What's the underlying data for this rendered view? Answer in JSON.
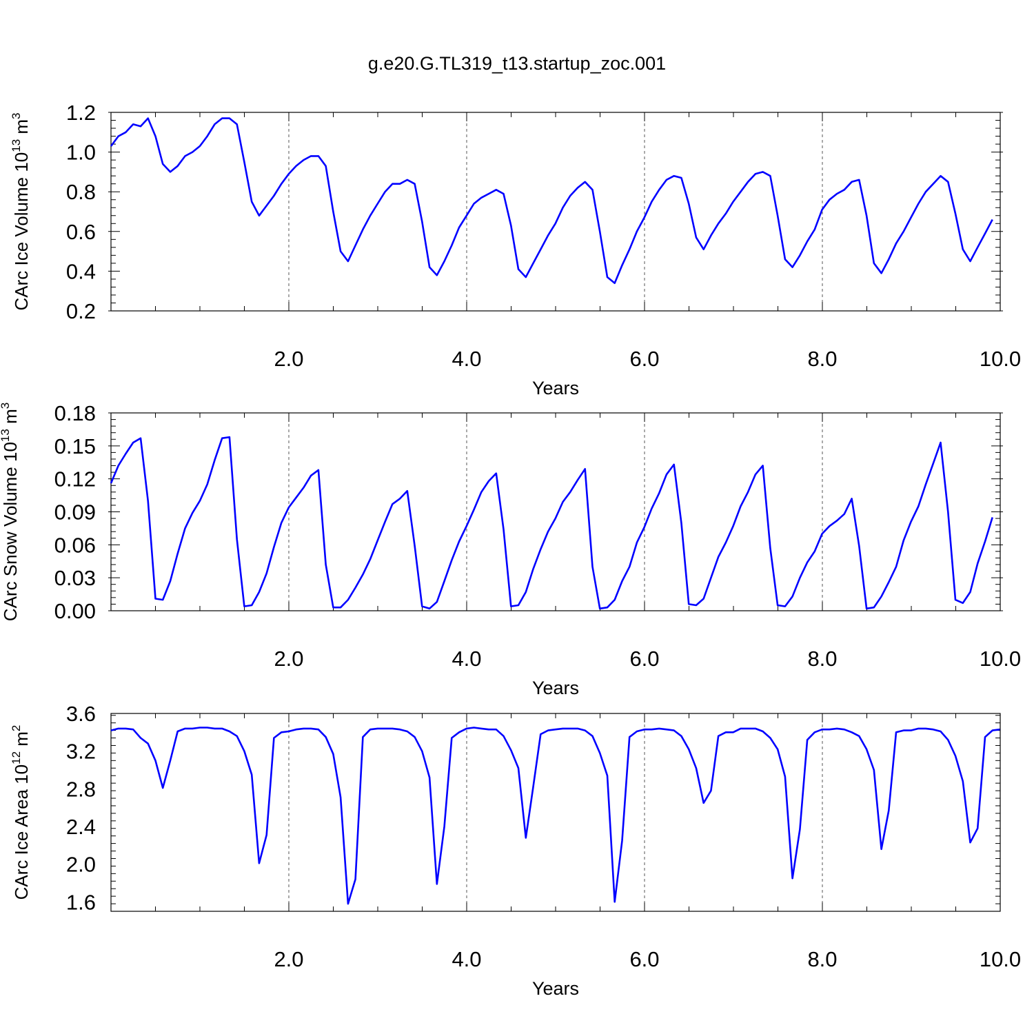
{
  "title": "g.e20.G.TL319_t13.startup_zoc.001",
  "colors": {
    "series": "#0000ff",
    "axis": "#000000",
    "grid": "#555555"
  },
  "chart_data": [
    {
      "type": "line",
      "ylabel": "CArc Ice Volume 10",
      "ylabel_exp": "13",
      "ylabel_unit": "m",
      "ylabel_unit_exp": "3",
      "xlabel": "Years",
      "xlim": [
        0.0,
        10.0
      ],
      "ylim": [
        0.2,
        1.2
      ],
      "xticks": [
        2.0,
        4.0,
        6.0,
        8.0,
        10.0
      ],
      "xtick_labels": [
        "2.0",
        "4.0",
        "6.0",
        "8.0",
        "10.0"
      ],
      "yticks": [
        0.2,
        0.4,
        0.6,
        0.8,
        1.0,
        1.2
      ],
      "ytick_labels": [
        "0.2",
        "0.4",
        "0.6",
        "0.8",
        "1.0",
        "1.2"
      ],
      "grid": "vertical-dashed",
      "x_step": 0.0833,
      "values": [
        1.03,
        1.08,
        1.1,
        1.14,
        1.13,
        1.17,
        1.08,
        0.94,
        0.9,
        0.93,
        0.98,
        1.0,
        1.03,
        1.08,
        1.14,
        1.17,
        1.17,
        1.14,
        0.95,
        0.75,
        0.68,
        0.73,
        0.78,
        0.84,
        0.89,
        0.93,
        0.96,
        0.98,
        0.98,
        0.93,
        0.7,
        0.5,
        0.45,
        0.53,
        0.61,
        0.68,
        0.74,
        0.8,
        0.84,
        0.84,
        0.86,
        0.84,
        0.65,
        0.42,
        0.38,
        0.45,
        0.53,
        0.62,
        0.68,
        0.74,
        0.77,
        0.79,
        0.81,
        0.79,
        0.63,
        0.41,
        0.37,
        0.44,
        0.51,
        0.58,
        0.64,
        0.72,
        0.78,
        0.82,
        0.85,
        0.81,
        0.6,
        0.37,
        0.34,
        0.43,
        0.51,
        0.6,
        0.67,
        0.75,
        0.81,
        0.86,
        0.88,
        0.87,
        0.74,
        0.57,
        0.51,
        0.58,
        0.64,
        0.69,
        0.75,
        0.8,
        0.85,
        0.89,
        0.9,
        0.88,
        0.68,
        0.46,
        0.42,
        0.48,
        0.55,
        0.61,
        0.71,
        0.76,
        0.79,
        0.81,
        0.85,
        0.86,
        0.68,
        0.44,
        0.39,
        0.46,
        0.54,
        0.6,
        0.67,
        0.74,
        0.8,
        0.84,
        0.88,
        0.85,
        0.69,
        0.51,
        0.45,
        0.52,
        0.59,
        0.66
      ]
    },
    {
      "type": "line",
      "ylabel": "CArc Snow Volume 10",
      "ylabel_exp": "13",
      "ylabel_unit": "m",
      "ylabel_unit_exp": "3",
      "xlabel": "Years",
      "xlim": [
        0.0,
        10.0
      ],
      "ylim": [
        0.0,
        0.18
      ],
      "xticks": [
        2.0,
        4.0,
        6.0,
        8.0,
        10.0
      ],
      "xtick_labels": [
        "2.0",
        "4.0",
        "6.0",
        "8.0",
        "10.0"
      ],
      "yticks": [
        0.0,
        0.03,
        0.06,
        0.09,
        0.12,
        0.15,
        0.18
      ],
      "ytick_labels": [
        "0.00",
        "0.03",
        "0.06",
        "0.09",
        "0.12",
        "0.15",
        "0.18"
      ],
      "grid": "vertical-dashed",
      "x_step": 0.0833,
      "values": [
        0.116,
        0.132,
        0.143,
        0.153,
        0.157,
        0.1,
        0.011,
        0.01,
        0.027,
        0.052,
        0.075,
        0.089,
        0.1,
        0.115,
        0.137,
        0.157,
        0.158,
        0.065,
        0.004,
        0.005,
        0.017,
        0.034,
        0.058,
        0.08,
        0.094,
        0.103,
        0.112,
        0.123,
        0.128,
        0.042,
        0.003,
        0.003,
        0.01,
        0.021,
        0.033,
        0.047,
        0.064,
        0.081,
        0.097,
        0.102,
        0.109,
        0.059,
        0.004,
        0.002,
        0.008,
        0.027,
        0.046,
        0.063,
        0.077,
        0.092,
        0.108,
        0.118,
        0.125,
        0.074,
        0.004,
        0.005,
        0.017,
        0.038,
        0.056,
        0.072,
        0.084,
        0.099,
        0.108,
        0.119,
        0.129,
        0.04,
        0.002,
        0.003,
        0.01,
        0.027,
        0.04,
        0.062,
        0.076,
        0.093,
        0.107,
        0.124,
        0.133,
        0.08,
        0.006,
        0.005,
        0.011,
        0.03,
        0.049,
        0.062,
        0.077,
        0.095,
        0.108,
        0.124,
        0.132,
        0.057,
        0.005,
        0.004,
        0.013,
        0.03,
        0.044,
        0.054,
        0.07,
        0.077,
        0.082,
        0.088,
        0.102,
        0.059,
        0.002,
        0.003,
        0.013,
        0.026,
        0.04,
        0.064,
        0.081,
        0.095,
        0.115,
        0.134,
        0.153,
        0.09,
        0.01,
        0.007,
        0.017,
        0.043,
        0.063,
        0.085
      ]
    },
    {
      "type": "line",
      "ylabel": "CArc Ice Area 10",
      "ylabel_exp": "12",
      "ylabel_unit": "m",
      "ylabel_unit_exp": "2",
      "xlabel": "Years",
      "xlim": [
        0.0,
        10.0
      ],
      "ylim": [
        1.5,
        3.6
      ],
      "xticks": [
        2.0,
        4.0,
        6.0,
        8.0,
        10.0
      ],
      "xtick_labels": [
        "2.0",
        "4.0",
        "6.0",
        "8.0",
        "10.0"
      ],
      "yticks": [
        1.6,
        2.0,
        2.4,
        2.8,
        3.2,
        3.6
      ],
      "ytick_labels": [
        "1.6",
        "2.0",
        "2.4",
        "2.8",
        "3.2",
        "3.6"
      ],
      "grid": "vertical-dashed",
      "x_step": 0.0833,
      "values": [
        3.42,
        3.44,
        3.44,
        3.43,
        3.34,
        3.28,
        3.1,
        2.81,
        3.1,
        3.41,
        3.44,
        3.44,
        3.45,
        3.45,
        3.44,
        3.44,
        3.41,
        3.36,
        3.2,
        2.95,
        2.01,
        2.31,
        3.34,
        3.4,
        3.41,
        3.43,
        3.44,
        3.44,
        3.43,
        3.35,
        3.17,
        2.71,
        1.58,
        1.84,
        3.35,
        3.43,
        3.44,
        3.44,
        3.44,
        3.43,
        3.41,
        3.35,
        3.2,
        2.92,
        1.79,
        2.4,
        3.34,
        3.4,
        3.44,
        3.45,
        3.44,
        3.43,
        3.43,
        3.36,
        3.21,
        3.02,
        2.28,
        2.82,
        3.38,
        3.42,
        3.43,
        3.44,
        3.44,
        3.44,
        3.42,
        3.36,
        3.18,
        2.94,
        1.6,
        2.25,
        3.35,
        3.41,
        3.43,
        3.43,
        3.44,
        3.43,
        3.42,
        3.36,
        3.22,
        3.02,
        2.65,
        2.78,
        3.36,
        3.4,
        3.4,
        3.44,
        3.44,
        3.44,
        3.41,
        3.34,
        3.22,
        2.93,
        1.85,
        2.37,
        3.32,
        3.4,
        3.43,
        3.43,
        3.44,
        3.43,
        3.4,
        3.36,
        3.22,
        3.0,
        2.16,
        2.57,
        3.4,
        3.42,
        3.42,
        3.44,
        3.44,
        3.43,
        3.41,
        3.32,
        3.15,
        2.88,
        2.23,
        2.38,
        3.35,
        3.42,
        3.43
      ]
    }
  ]
}
